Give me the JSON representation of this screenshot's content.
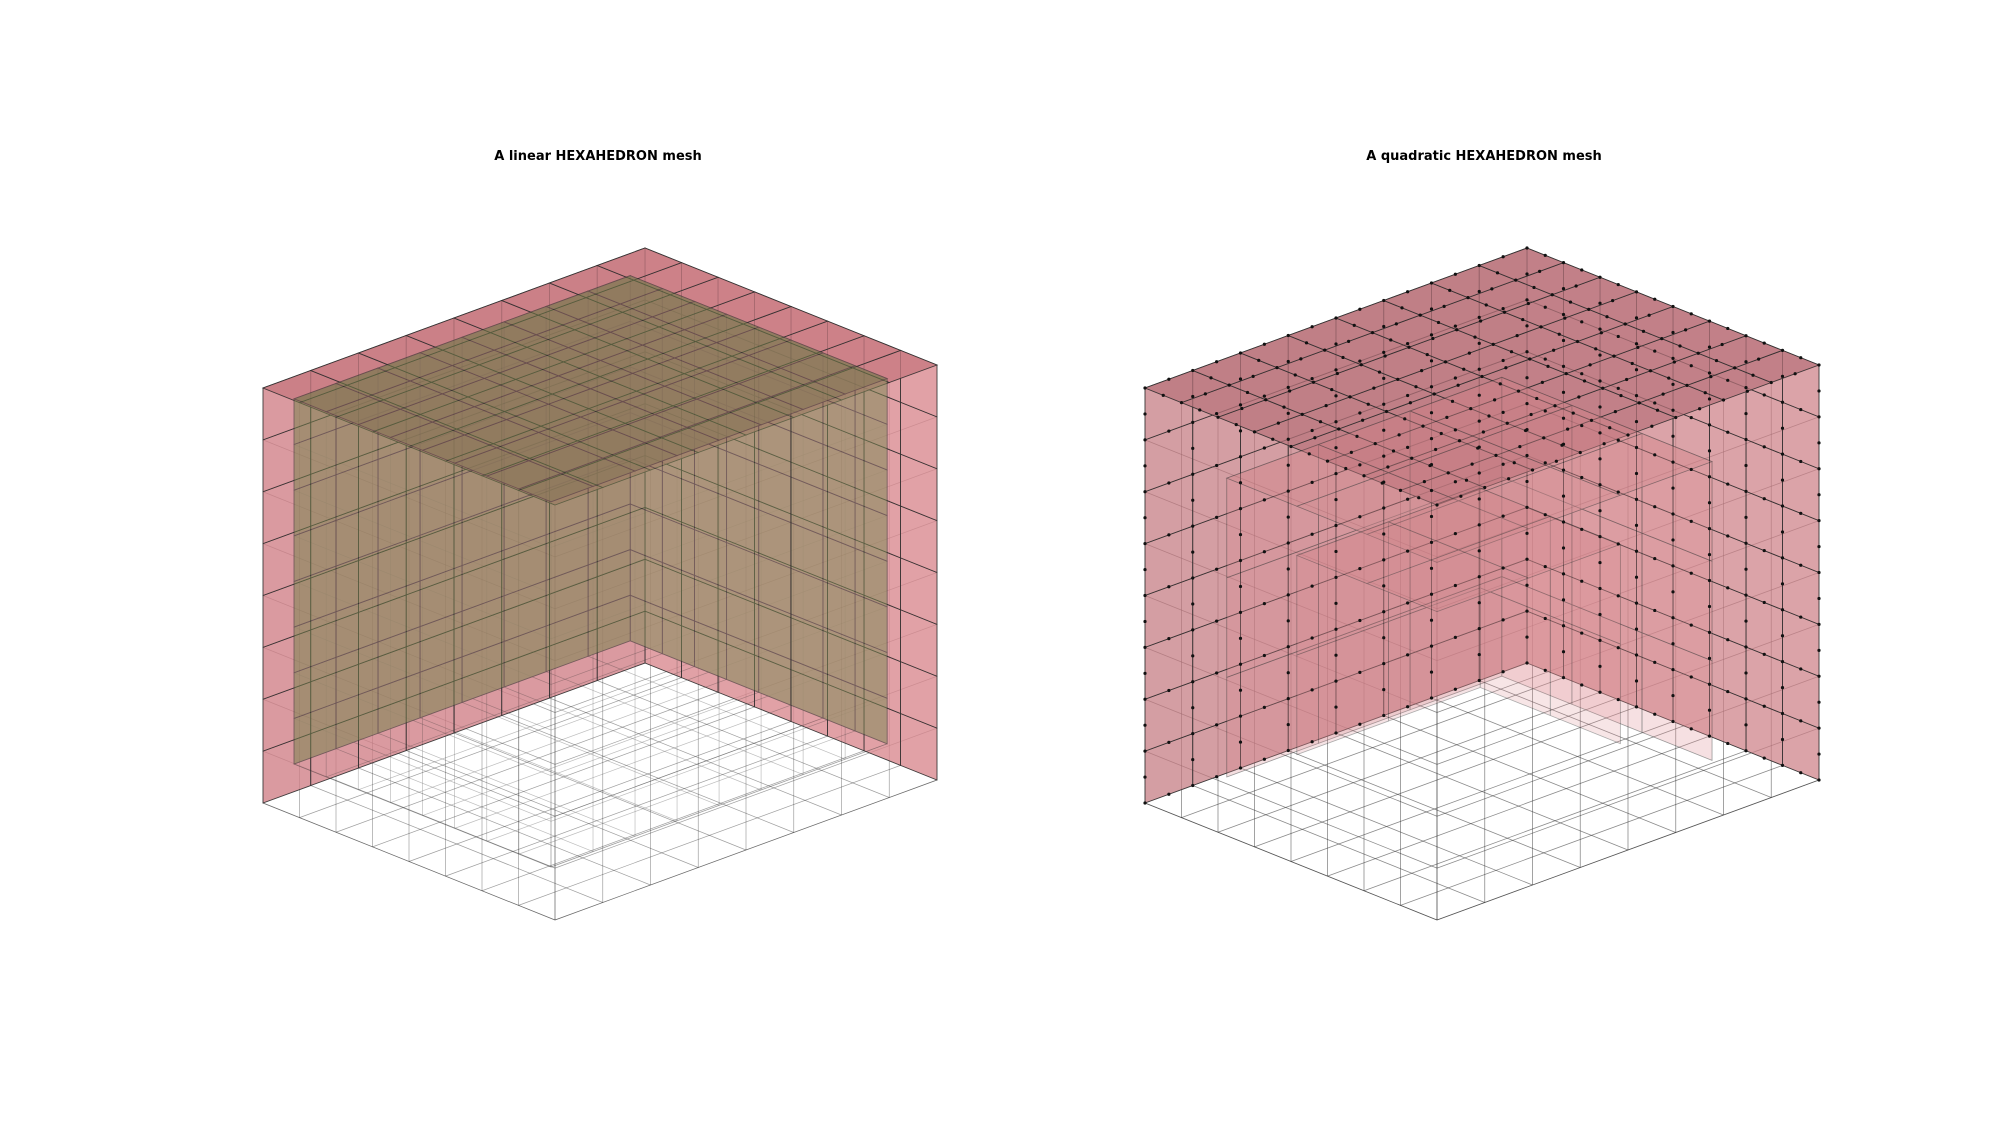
{
  "figure": {
    "panels": [
      {
        "title": "A linear HEXAHEDRON mesh",
        "mesh_order": "linear",
        "element_type": "HEXAHEDRON",
        "divisions": 8,
        "outer_color": "#c97b82",
        "inner_color": "#6f7d4a",
        "edge_color": "#2b2b2b"
      },
      {
        "title": "A quadratic HEXAHEDRON mesh",
        "mesh_order": "quadratic",
        "element_type": "HEXAHEDRON",
        "divisions": 8,
        "outer_color": "#c97b82",
        "edge_color": "#2b2b2b",
        "node_color": "#111111"
      }
    ]
  }
}
